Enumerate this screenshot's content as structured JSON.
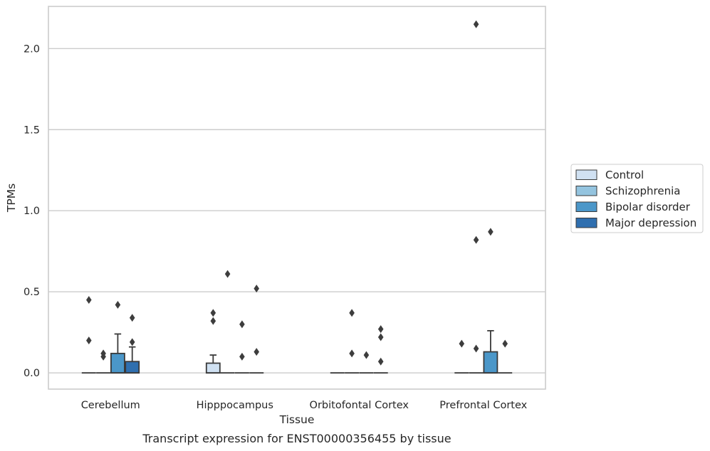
{
  "chart_data": {
    "type": "box",
    "caption": "Transcript expression for ENST00000356455 by tissue",
    "xlabel": "Tissue",
    "ylabel": "TPMs",
    "ylim": [
      -0.1,
      2.26
    ],
    "yticks": [
      0.0,
      0.5,
      1.0,
      1.5,
      2.0
    ],
    "ytick_labels": [
      "0.0",
      "0.5",
      "1.0",
      "1.5",
      "2.0"
    ],
    "grid": "horizontal",
    "legend_position": "right",
    "categories": [
      "Cerebellum",
      "Hipppocampus",
      "Orbitofontal Cortex",
      "Prefrontal Cortex"
    ],
    "series": [
      {
        "name": "Control",
        "color": "#d0e1f2"
      },
      {
        "name": "Schizophrenia",
        "color": "#94c4df"
      },
      {
        "name": "Bipolar disorder",
        "color": "#4b97c9"
      },
      {
        "name": "Major depression",
        "color": "#2f6faf"
      }
    ],
    "boxes": [
      {
        "category": 0,
        "series": 0,
        "q1": 0,
        "median": 0,
        "q3": 0,
        "whisker_low": 0,
        "whisker_high": 0,
        "outliers": [
          0.45,
          0.2
        ]
      },
      {
        "category": 0,
        "series": 1,
        "q1": 0,
        "median": 0,
        "q3": 0,
        "whisker_low": 0,
        "whisker_high": 0,
        "outliers": [
          0.12,
          0.1
        ]
      },
      {
        "category": 0,
        "series": 2,
        "q1": 0,
        "median": 0,
        "q3": 0.12,
        "whisker_low": 0,
        "whisker_high": 0.24,
        "outliers": [
          0.42
        ]
      },
      {
        "category": 0,
        "series": 3,
        "q1": 0,
        "median": 0,
        "q3": 0.07,
        "whisker_low": 0,
        "whisker_high": 0.16,
        "outliers": [
          0.34,
          0.19
        ]
      },
      {
        "category": 1,
        "series": 0,
        "q1": 0,
        "median": 0,
        "q3": 0.06,
        "whisker_low": 0,
        "whisker_high": 0.11,
        "outliers": [
          0.37,
          0.32
        ]
      },
      {
        "category": 1,
        "series": 1,
        "q1": 0,
        "median": 0,
        "q3": 0,
        "whisker_low": 0,
        "whisker_high": 0,
        "outliers": [
          0.61
        ]
      },
      {
        "category": 1,
        "series": 2,
        "q1": 0,
        "median": 0,
        "q3": 0,
        "whisker_low": 0,
        "whisker_high": 0,
        "outliers": [
          0.3,
          0.1
        ]
      },
      {
        "category": 1,
        "series": 3,
        "q1": 0,
        "median": 0,
        "q3": 0,
        "whisker_low": 0,
        "whisker_high": 0,
        "outliers": [
          0.52,
          0.13
        ]
      },
      {
        "category": 2,
        "series": 0,
        "q1": 0,
        "median": 0,
        "q3": 0,
        "whisker_low": 0,
        "whisker_high": 0,
        "outliers": []
      },
      {
        "category": 2,
        "series": 1,
        "q1": 0,
        "median": 0,
        "q3": 0,
        "whisker_low": 0,
        "whisker_high": 0,
        "outliers": [
          0.37,
          0.12
        ]
      },
      {
        "category": 2,
        "series": 2,
        "q1": 0,
        "median": 0,
        "q3": 0,
        "whisker_low": 0,
        "whisker_high": 0,
        "outliers": [
          0.11
        ]
      },
      {
        "category": 2,
        "series": 3,
        "q1": 0,
        "median": 0,
        "q3": 0,
        "whisker_low": 0,
        "whisker_high": 0,
        "outliers": [
          0.27,
          0.22,
          0.07
        ]
      },
      {
        "category": 3,
        "series": 0,
        "q1": 0,
        "median": 0,
        "q3": 0,
        "whisker_low": 0,
        "whisker_high": 0,
        "outliers": [
          0.18
        ]
      },
      {
        "category": 3,
        "series": 1,
        "q1": 0,
        "median": 0,
        "q3": 0,
        "whisker_low": 0,
        "whisker_high": 0,
        "outliers": [
          2.15,
          0.82,
          0.15
        ]
      },
      {
        "category": 3,
        "series": 2,
        "q1": 0,
        "median": 0,
        "q3": 0.13,
        "whisker_low": 0,
        "whisker_high": 0.26,
        "outliers": [
          0.87
        ]
      },
      {
        "category": 3,
        "series": 3,
        "q1": 0,
        "median": 0,
        "q3": 0,
        "whisker_low": 0,
        "whisker_high": 0,
        "outliers": [
          0.18
        ]
      }
    ]
  }
}
